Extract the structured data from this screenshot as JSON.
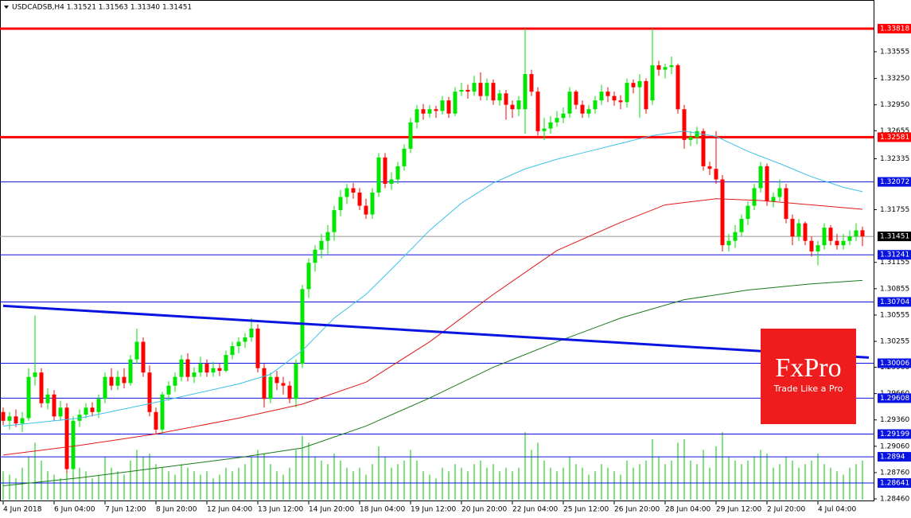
{
  "chart_data": {
    "type": "candlestick",
    "title": "USDCADSB,H4  1.31521 1.31563 1.31340 1.31451",
    "up_color": "#00e600",
    "down_color": "#ff0000",
    "ylim": [
      1.28433,
      1.34144
    ],
    "yticks": [
      1.33555,
      {
        "value": 1.3325,
        "label": "1.33250"
      },
      {
        "value": 1.3295,
        "label": "1.32950"
      },
      1.32655,
      1.32335,
      1.31755,
      1.31155,
      1.30855,
      1.30555,
      1.30255,
      {
        "value": 1.2996,
        "label": "1.29960"
      },
      {
        "value": 1.2966,
        "label": "1.29660"
      },
      {
        "value": 1.2936,
        "label": "1.29360"
      },
      {
        "value": 1.2906,
        "label": "1.29060"
      },
      {
        "value": 1.2876,
        "label": "1.28760"
      },
      {
        "value": 1.2846,
        "label": "1.28460"
      }
    ],
    "xticks": [
      {
        "value": 0,
        "label": "4 Jun 2018"
      },
      {
        "value": 8,
        "label": "6 Jun 04:00"
      },
      {
        "value": 16,
        "label": "7 Jun 12:00"
      },
      {
        "value": 24,
        "label": "8 Jun 20:00"
      },
      {
        "value": 32,
        "label": "12 Jun 04:00"
      },
      {
        "value": 40,
        "label": "13 Jun 12:00"
      },
      {
        "value": 48,
        "label": "14 Jun 20:00"
      },
      {
        "value": 56,
        "label": "18 Jun 04:00"
      },
      {
        "value": 64,
        "label": "19 Jun 12:00"
      },
      {
        "value": 72,
        "label": "20 Jun 20:00"
      },
      {
        "value": 80,
        "label": "22 Jun 04:00"
      },
      {
        "value": 88,
        "label": "25 Jun 12:00"
      },
      {
        "value": 96,
        "label": "26 Jun 20:00"
      },
      {
        "value": 104,
        "label": "28 Jun 04:00"
      },
      {
        "value": 112,
        "label": "29 Jun 12:00"
      },
      {
        "value": 120,
        "label": "2 Jul 20:00"
      },
      {
        "value": 128,
        "label": "4 Jul 04:00"
      }
    ],
    "candles": [
      [
        1.2945,
        1.295,
        1.293,
        1.2935
      ],
      [
        1.2935,
        1.2945,
        1.2925,
        1.294
      ],
      [
        1.294,
        1.2948,
        1.2928,
        1.2932
      ],
      [
        1.2932,
        1.2945,
        1.2922,
        1.2938
      ],
      [
        1.2938,
        1.2995,
        1.2935,
        1.2985
      ],
      [
        1.2985,
        1.3055,
        1.2975,
        1.299
      ],
      [
        1.299,
        1.2995,
        1.295,
        1.2955
      ],
      [
        1.2955,
        1.2972,
        1.2948,
        1.2965
      ],
      [
        1.2965,
        1.297,
        1.2935,
        1.294
      ],
      [
        1.294,
        1.2958,
        1.2935,
        1.295
      ],
      [
        1.295,
        1.2955,
        1.2875,
        1.288
      ],
      [
        1.288,
        1.294,
        1.2875,
        1.2935
      ],
      [
        1.2935,
        1.2948,
        1.2928,
        1.2942
      ],
      [
        1.2942,
        1.2955,
        1.2938,
        1.295
      ],
      [
        1.295,
        1.2956,
        1.294,
        1.2945
      ],
      [
        1.2945,
        1.2965,
        1.2938,
        1.296
      ],
      [
        1.296,
        1.299,
        1.2955,
        1.2985
      ],
      [
        1.2985,
        1.2995,
        1.297,
        1.2975
      ],
      [
        1.2975,
        1.2992,
        1.297,
        1.2985
      ],
      [
        1.2985,
        1.2995,
        1.2972,
        1.2978
      ],
      [
        1.2978,
        1.301,
        1.2975,
        1.3005
      ],
      [
        1.3005,
        1.304,
        1.3,
        1.3025
      ],
      [
        1.3025,
        1.303,
        1.2985,
        1.299
      ],
      [
        1.299,
        1.2998,
        1.294,
        1.2945
      ],
      [
        1.2945,
        1.295,
        1.292,
        1.2925
      ],
      [
        1.2925,
        1.2968,
        1.292,
        1.2965
      ],
      [
        1.2965,
        1.298,
        1.2958,
        1.2975
      ],
      [
        1.2975,
        1.299,
        1.2968,
        1.2985
      ],
      [
        1.2985,
        1.301,
        1.298,
        1.3005
      ],
      [
        1.3005,
        1.3012,
        1.298,
        1.2985
      ],
      [
        1.2985,
        1.2996,
        1.2978,
        1.299
      ],
      [
        1.299,
        1.3008,
        1.2985,
        1.3
      ],
      [
        1.3,
        1.3005,
        1.2985,
        1.299
      ],
      [
        1.299,
        1.3002,
        1.2985,
        1.2995
      ],
      [
        1.2995,
        1.3,
        1.2986,
        1.2992
      ],
      [
        1.2992,
        1.3015,
        1.299,
        1.301
      ],
      [
        1.301,
        1.3025,
        1.3005,
        1.302
      ],
      [
        1.302,
        1.303,
        1.3012,
        1.3025
      ],
      [
        1.3025,
        1.3035,
        1.3018,
        1.303
      ],
      [
        1.303,
        1.3052,
        1.3025,
        1.304
      ],
      [
        1.304,
        1.3045,
        1.299,
        1.2995
      ],
      [
        1.2995,
        1.3,
        1.295,
        1.296
      ],
      [
        1.296,
        1.299,
        1.2955,
        1.2985
      ],
      [
        1.2985,
        1.2992,
        1.297,
        1.2978
      ],
      [
        1.2978,
        1.2985,
        1.2965,
        1.2975
      ],
      [
        1.2975,
        1.298,
        1.2955,
        1.296
      ],
      [
        1.296,
        1.3005,
        1.295,
        1.3
      ],
      [
        1.3,
        1.309,
        1.2995,
        1.3085
      ],
      [
        1.3085,
        1.312,
        1.3075,
        1.3115
      ],
      [
        1.3115,
        1.3135,
        1.3105,
        1.313
      ],
      [
        1.313,
        1.3148,
        1.312,
        1.314
      ],
      [
        1.314,
        1.3158,
        1.3125,
        1.315
      ],
      [
        1.315,
        1.318,
        1.314,
        1.3175
      ],
      [
        1.3175,
        1.3198,
        1.3168,
        1.319
      ],
      [
        1.319,
        1.3205,
        1.3182,
        1.32
      ],
      [
        1.32,
        1.3206,
        1.3188,
        1.3195
      ],
      [
        1.3195,
        1.32,
        1.3175,
        1.318
      ],
      [
        1.318,
        1.3188,
        1.3165,
        1.317
      ],
      [
        1.317,
        1.32,
        1.3165,
        1.3195
      ],
      [
        1.3195,
        1.324,
        1.319,
        1.3235
      ],
      [
        1.3235,
        1.324,
        1.32,
        1.3205
      ],
      [
        1.3205,
        1.3218,
        1.3198,
        1.321
      ],
      [
        1.321,
        1.323,
        1.3205,
        1.3225
      ],
      [
        1.3225,
        1.325,
        1.322,
        1.3245
      ],
      [
        1.3245,
        1.328,
        1.324,
        1.3275
      ],
      [
        1.3275,
        1.3295,
        1.3268,
        1.329
      ],
      [
        1.329,
        1.3296,
        1.3278,
        1.3285
      ],
      [
        1.3285,
        1.3295,
        1.328,
        1.329
      ],
      [
        1.329,
        1.3294,
        1.328,
        1.3288
      ],
      [
        1.3288,
        1.3305,
        1.3284,
        1.33
      ],
      [
        1.33,
        1.3304,
        1.328,
        1.3285
      ],
      [
        1.3285,
        1.3315,
        1.3282,
        1.331
      ],
      [
        1.331,
        1.332,
        1.3305,
        1.3312
      ],
      [
        1.3312,
        1.3318,
        1.3302,
        1.331
      ],
      [
        1.331,
        1.3328,
        1.3305,
        1.332
      ],
      [
        1.332,
        1.3332,
        1.33,
        1.3305
      ],
      [
        1.3305,
        1.3325,
        1.33,
        1.332
      ],
      [
        1.332,
        1.3324,
        1.3295,
        1.33
      ],
      [
        1.33,
        1.3312,
        1.3294,
        1.3308
      ],
      [
        1.3308,
        1.3312,
        1.3278,
        1.3295
      ],
      [
        1.3295,
        1.33,
        1.328,
        1.329
      ],
      [
        1.329,
        1.3305,
        1.3282,
        1.33
      ],
      [
        1.329,
        1.3382,
        1.3262,
        1.333
      ],
      [
        1.333,
        1.3335,
        1.3305,
        1.331
      ],
      [
        1.331,
        1.3315,
        1.326,
        1.3265
      ],
      [
        1.3265,
        1.328,
        1.3255,
        1.3268
      ],
      [
        1.3268,
        1.3282,
        1.3262,
        1.3275
      ],
      [
        1.3275,
        1.3288,
        1.327,
        1.328
      ],
      [
        1.328,
        1.3292,
        1.3274,
        1.3285
      ],
      [
        1.3285,
        1.3315,
        1.328,
        1.331
      ],
      [
        1.331,
        1.3312,
        1.329,
        1.3295
      ],
      [
        1.3295,
        1.33,
        1.328,
        1.3285
      ],
      [
        1.3285,
        1.3295,
        1.328,
        1.329
      ],
      [
        1.329,
        1.3305,
        1.3285,
        1.33
      ],
      [
        1.33,
        1.3318,
        1.3295,
        1.331
      ],
      [
        1.331,
        1.3315,
        1.3298,
        1.3305
      ],
      [
        1.3305,
        1.331,
        1.3294,
        1.33
      ],
      [
        1.33,
        1.3306,
        1.329,
        1.3298
      ],
      [
        1.3298,
        1.3325,
        1.3292,
        1.332
      ],
      [
        1.332,
        1.3324,
        1.3308,
        1.3315
      ],
      [
        1.3315,
        1.333,
        1.328,
        1.3322
      ],
      [
        1.3322,
        1.3325,
        1.3285,
        1.329
      ],
      [
        1.33,
        1.3382,
        1.3295,
        1.334
      ],
      [
        1.334,
        1.3345,
        1.3328,
        1.3335
      ],
      [
        1.3335,
        1.3342,
        1.3325,
        1.3338
      ],
      [
        1.3338,
        1.335,
        1.333,
        1.334
      ],
      [
        1.334,
        1.3342,
        1.3285,
        1.329
      ],
      [
        1.329,
        1.3295,
        1.3245,
        1.3255
      ],
      [
        1.3255,
        1.3265,
        1.3248,
        1.3258
      ],
      [
        1.3258,
        1.327,
        1.325,
        1.3265
      ],
      [
        1.3265,
        1.3268,
        1.322,
        1.3225
      ],
      [
        1.3225,
        1.323,
        1.3215,
        1.3222
      ],
      [
        1.3222,
        1.3265,
        1.3205,
        1.321
      ],
      [
        1.321,
        1.3215,
        1.3128,
        1.3135
      ],
      [
        1.3135,
        1.3148,
        1.3128,
        1.314
      ],
      [
        1.314,
        1.3158,
        1.3132,
        1.315
      ],
      [
        1.315,
        1.317,
        1.3145,
        1.3165
      ],
      [
        1.3165,
        1.3185,
        1.3158,
        1.318
      ],
      [
        1.318,
        1.3205,
        1.3175,
        1.32
      ],
      [
        1.32,
        1.323,
        1.3195,
        1.3225
      ],
      [
        1.3225,
        1.3228,
        1.318,
        1.3185
      ],
      [
        1.3185,
        1.3195,
        1.3178,
        1.319
      ],
      [
        1.319,
        1.321,
        1.3185,
        1.32
      ],
      [
        1.32,
        1.3205,
        1.316,
        1.3165
      ],
      [
        1.3165,
        1.317,
        1.3135,
        1.3145
      ],
      [
        1.3145,
        1.3165,
        1.314,
        1.316
      ],
      [
        1.316,
        1.3162,
        1.3135,
        1.314
      ],
      [
        1.314,
        1.3145,
        1.3122,
        1.3128
      ],
      [
        1.3128,
        1.314,
        1.3112,
        1.3135
      ],
      [
        1.3135,
        1.316,
        1.313,
        1.3155
      ],
      [
        1.3155,
        1.3158,
        1.3135,
        1.314
      ],
      [
        1.314,
        1.3148,
        1.313,
        1.3135
      ],
      [
        1.3135,
        1.3148,
        1.313,
        1.314
      ],
      [
        1.314,
        1.3152,
        1.3135,
        1.3145
      ],
      [
        1.3145,
        1.316,
        1.314,
        1.3152
      ],
      [
        1.31521,
        1.31563,
        1.3134,
        1.31451
      ]
    ],
    "volume_color": "#00c800",
    "volumes": [
      40,
      35,
      30,
      45,
      60,
      80,
      55,
      40,
      35,
      30,
      75,
      70,
      45,
      40,
      30,
      35,
      60,
      45,
      40,
      35,
      55,
      70,
      60,
      65,
      50,
      45,
      40,
      35,
      50,
      45,
      40,
      35,
      40,
      30,
      35,
      45,
      40,
      45,
      50,
      60,
      70,
      65,
      50,
      40,
      35,
      45,
      70,
      90,
      80,
      60,
      55,
      50,
      65,
      55,
      45,
      40,
      45,
      35,
      50,
      75,
      60,
      45,
      50,
      55,
      70,
      55,
      40,
      35,
      30,
      45,
      40,
      50,
      45,
      40,
      50,
      55,
      45,
      50,
      40,
      45,
      40,
      45,
      95,
      70,
      80,
      55,
      45,
      40,
      45,
      60,
      50,
      45,
      35,
      40,
      50,
      45,
      40,
      35,
      55,
      45,
      50,
      55,
      85,
      60,
      50,
      55,
      80,
      85,
      55,
      50,
      70,
      45,
      75,
      95,
      60,
      55,
      50,
      55,
      60,
      70,
      65,
      45,
      50,
      60,
      55,
      45,
      50,
      55,
      65,
      50,
      45,
      40,
      35,
      45,
      50,
      55
    ],
    "lines": [
      {
        "color": "#3ec1e8",
        "x": [
          0,
          12,
          24,
          37,
          42,
          47,
          52,
          57,
          62,
          67,
          72,
          77,
          82,
          87,
          92,
          97,
          102,
          107,
          112,
          117,
          122,
          127,
          132,
          135
        ],
        "values": [
          1.2929,
          1.2938,
          1.2956,
          1.2977,
          1.2988,
          1.3015,
          1.3052,
          1.3079,
          1.3115,
          1.3152,
          1.3183,
          1.3206,
          1.3222,
          1.3233,
          1.3242,
          1.3251,
          1.326,
          1.3265,
          1.3259,
          1.3242,
          1.3228,
          1.3213,
          1.3201,
          1.3196
        ]
      },
      {
        "color": "#e01818",
        "x": [
          0,
          12,
          24,
          37,
          47,
          57,
          67,
          77,
          87,
          97,
          104,
          112,
          119,
          127,
          135
        ],
        "values": [
          1.2896,
          1.2907,
          1.292,
          1.2938,
          1.2954,
          1.2979,
          1.3025,
          1.3079,
          1.3129,
          1.3161,
          1.3181,
          1.3188,
          1.3186,
          1.3181,
          1.3176
        ]
      },
      {
        "color": "#1a7a1a",
        "x": [
          0,
          12,
          24,
          37,
          47,
          57,
          67,
          77,
          87,
          97,
          107,
          117,
          127,
          135
        ],
        "values": [
          1.2861,
          1.287,
          1.2881,
          1.2893,
          1.2904,
          1.2929,
          1.2961,
          1.2996,
          1.3025,
          1.3052,
          1.3073,
          1.3084,
          1.3091,
          1.3095
        ]
      },
      {
        "color": "#0a14e0",
        "width": 3,
        "x": [
          0,
          136
        ],
        "values": [
          1.3066,
          1.3007
        ]
      }
    ],
    "levels": [
      {
        "value": 1.33818,
        "color": "#ff0000",
        "width": 3
      },
      {
        "value": 1.32581,
        "color": "#ff0000",
        "width": 3
      },
      {
        "value": 1.32072,
        "color": "#0a14e0",
        "width": 1
      },
      {
        "value": 1.31451,
        "color": "#9a9a9a",
        "width": 1,
        "box": "#000000"
      },
      {
        "value": 1.31241,
        "color": "#0a14e0",
        "width": 1
      },
      {
        "value": 1.30704,
        "color": "#0a14e0",
        "width": 1
      },
      {
        "value": 1.30006,
        "color": "#0a14e0",
        "width": 1
      },
      {
        "value": 1.29608,
        "color": "#0a14e0",
        "width": 1
      },
      {
        "value": 1.29199,
        "color": "#0a14e0",
        "width": 1
      },
      {
        "value": 1.2894,
        "color": "#0a14e0",
        "width": 1
      },
      {
        "value": 1.28641,
        "color": "#0a14e0",
        "width": 1
      }
    ],
    "logo": {
      "name": "FxPro",
      "tagline": "Trade Like a Pro"
    }
  }
}
